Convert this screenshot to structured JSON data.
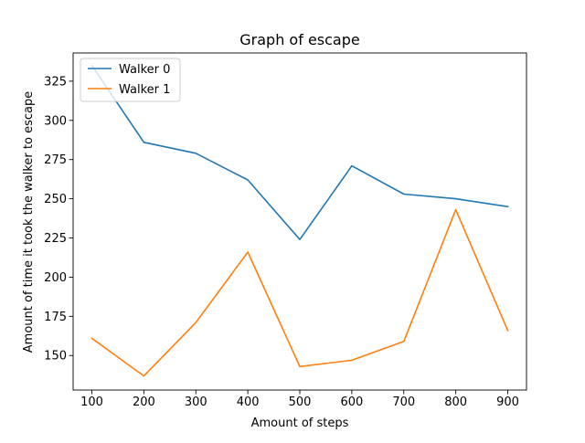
{
  "chart_data": {
    "type": "line",
    "title": "Graph of escape",
    "xlabel": "Amount of steps",
    "ylabel": "Amount of time it took the walker to escape",
    "x": [
      100,
      200,
      300,
      400,
      500,
      600,
      700,
      800,
      900
    ],
    "xlim": [
      64,
      936
    ],
    "ylim": [
      128,
      343
    ],
    "x_ticks": [
      100,
      200,
      300,
      400,
      500,
      600,
      700,
      800,
      900
    ],
    "y_ticks": [
      150,
      175,
      200,
      225,
      250,
      275,
      300,
      325
    ],
    "grid": false,
    "legend_position": "top-left",
    "series": [
      {
        "name": "Walker 0",
        "color": "#1f77b4",
        "values": [
          335,
          286,
          279,
          262,
          224,
          271,
          253,
          250,
          245
        ]
      },
      {
        "name": "Walker 1",
        "color": "#ff7f0e",
        "values": [
          161,
          137,
          171,
          216,
          143,
          147,
          159,
          243,
          166
        ]
      }
    ]
  }
}
